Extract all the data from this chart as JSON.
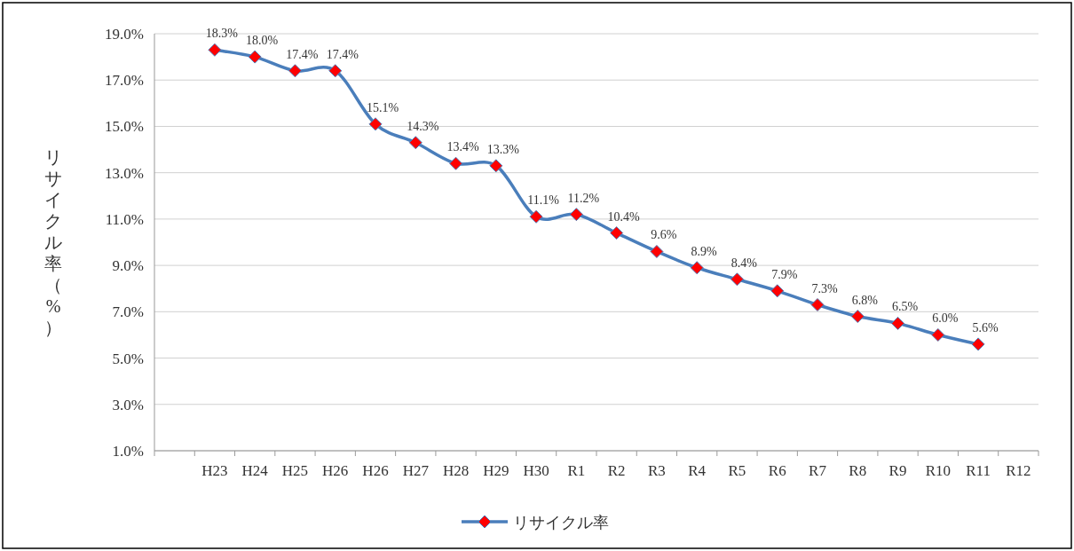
{
  "chart_data": {
    "type": "line",
    "ylabel": "リサイクル率（%）",
    "categories": [
      null,
      "H23",
      "H24",
      "H25",
      "H26",
      "H26",
      "H27",
      "H28",
      "H29",
      "H30",
      "R1",
      "R2",
      "R3",
      "R4",
      "R5",
      "R6",
      "R7",
      "R8",
      "R9",
      "R10",
      "R11",
      "R12"
    ],
    "series": [
      {
        "name": "リサイクル率",
        "color": "#4a7ebb",
        "values": [
          null,
          18.3,
          18.0,
          17.4,
          17.4,
          15.1,
          14.3,
          13.4,
          13.3,
          11.1,
          11.2,
          10.4,
          9.6,
          8.9,
          8.4,
          7.9,
          7.3,
          6.8,
          6.5,
          6.0,
          5.6,
          null
        ],
        "value_labels": [
          null,
          "18.3%",
          "18.0%",
          "17.4%",
          "17.4%",
          "15.1%",
          "14.3%",
          "13.4%",
          "13.3%",
          "11.1%",
          "11.2%",
          "10.4%",
          "9.6%",
          "8.9%",
          "8.4%",
          "7.9%",
          "7.3%",
          "6.8%",
          "6.5%",
          "6.0%",
          "5.6%",
          null
        ]
      }
    ],
    "ylim": [
      1,
      19
    ],
    "yticks": [
      {
        "value": 1,
        "label": "1.0%"
      },
      {
        "value": 3,
        "label": "3.0%"
      },
      {
        "value": 5,
        "label": "5.0%"
      },
      {
        "value": 7,
        "label": "7.0%"
      },
      {
        "value": 9,
        "label": "9.0%"
      },
      {
        "value": 11,
        "label": "11.0%"
      },
      {
        "value": 13,
        "label": "13.0%"
      },
      {
        "value": 15,
        "label": "15.0%"
      },
      {
        "value": 17,
        "label": "17.0%"
      },
      {
        "value": 19,
        "label": "19.0%"
      }
    ],
    "grid": "y",
    "legend": "bottom",
    "marker": "diamond",
    "line_style": "solid"
  }
}
